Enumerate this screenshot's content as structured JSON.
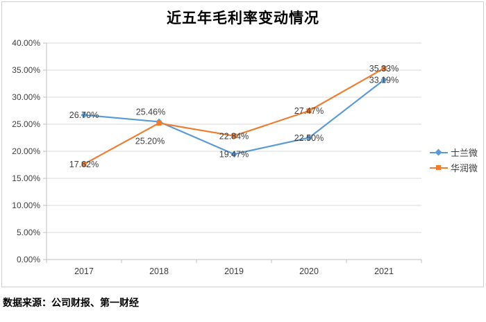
{
  "chart_data": {
    "type": "line",
    "title": "近五年毛利率变动情况",
    "categories": [
      "2017",
      "2018",
      "2019",
      "2020",
      "2021"
    ],
    "series": [
      {
        "name": "士兰微",
        "color": "#5B9BD5",
        "marker": "diamond",
        "values": [
          26.7,
          25.46,
          19.47,
          22.5,
          33.19
        ],
        "data_labels": [
          "26.70%",
          "25.46%",
          "19.47%",
          "22.50%",
          "33.19%"
        ],
        "label_positions": [
          "center",
          "above",
          "center",
          "center",
          "center"
        ]
      },
      {
        "name": "华润微",
        "color": "#ED7D31",
        "marker": "square",
        "values": [
          17.62,
          25.2,
          22.84,
          27.47,
          35.33
        ],
        "data_labels": [
          "17.62%",
          "25.20%",
          "22.84%",
          "27.47%",
          "35.33%"
        ],
        "label_positions": [
          "center",
          "below",
          "center",
          "center",
          "center"
        ]
      }
    ],
    "ylim": [
      0,
      40
    ],
    "ytick_step": 5,
    "ytick_labels": [
      "0.00%",
      "5.00%",
      "10.00%",
      "15.00%",
      "20.00%",
      "25.00%",
      "30.00%",
      "35.00%",
      "40.00%"
    ],
    "xlabel": "",
    "ylabel": "",
    "grid": "horizontal",
    "legend_position": "right"
  },
  "colors": {
    "gridline": "#D9D9D9",
    "axis": "#BFBFBF",
    "tick_text": "#404040",
    "data_label_text": "#404040",
    "title_text": "#000000",
    "chart_border": "#D0CECE"
  },
  "source_note": "数据来源：公司财报、第一财经"
}
